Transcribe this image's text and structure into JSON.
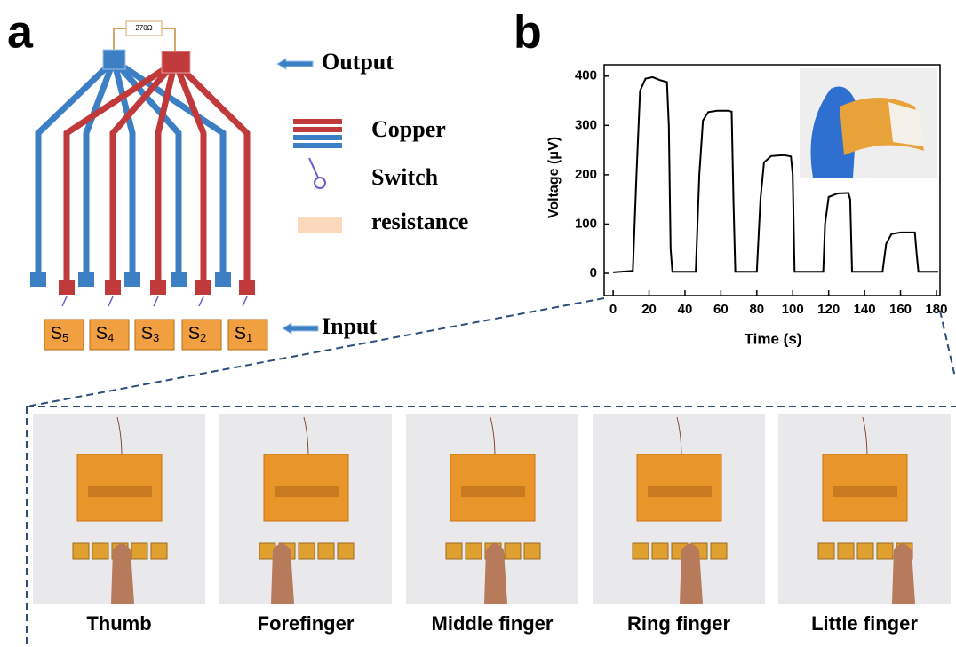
{
  "panel_a": {
    "letter": "a",
    "resistor": "270Ω",
    "output": "Output",
    "copper": "Copper",
    "switch": "Switch",
    "resistance": "resistance",
    "input": "Input",
    "sensors": [
      {
        "letter": "S",
        "index": "5"
      },
      {
        "letter": "S",
        "index": "4"
      },
      {
        "letter": "S",
        "index": "3"
      },
      {
        "letter": "S",
        "index": "2"
      },
      {
        "letter": "S",
        "index": "1"
      }
    ]
  },
  "panel_b": {
    "letter": "b"
  },
  "chart_data": {
    "type": "line",
    "xlabel": "Time (s)",
    "ylabel": "Voltage (μV)",
    "color": "#000000",
    "x": [
      0,
      11,
      13,
      15,
      18,
      22,
      26,
      30,
      31,
      32,
      33,
      46,
      48,
      50,
      53,
      58,
      64,
      66,
      67,
      68,
      80,
      82,
      84,
      88,
      95,
      99,
      100,
      101,
      117,
      118,
      120,
      125,
      131,
      132,
      133,
      150,
      152,
      155,
      160,
      168,
      169,
      170,
      181
    ],
    "values": [
      2,
      5,
      200,
      370,
      395,
      398,
      392,
      388,
      300,
      50,
      3,
      3,
      200,
      310,
      327,
      330,
      330,
      328,
      150,
      3,
      3,
      150,
      225,
      238,
      240,
      237,
      200,
      3,
      3,
      100,
      155,
      162,
      163,
      150,
      3,
      3,
      60,
      80,
      83,
      83,
      40,
      3,
      3
    ],
    "xlim": [
      -5,
      182
    ],
    "ylim": [
      -45,
      423
    ],
    "xticks": [
      0,
      20,
      40,
      60,
      80,
      100,
      120,
      140,
      160,
      180
    ],
    "yticks": [
      0,
      100,
      200,
      300,
      400
    ]
  },
  "photos": {
    "captions": [
      "Thumb",
      "Forefinger",
      "Middle finger",
      "Ring finger",
      "Little finger"
    ]
  }
}
